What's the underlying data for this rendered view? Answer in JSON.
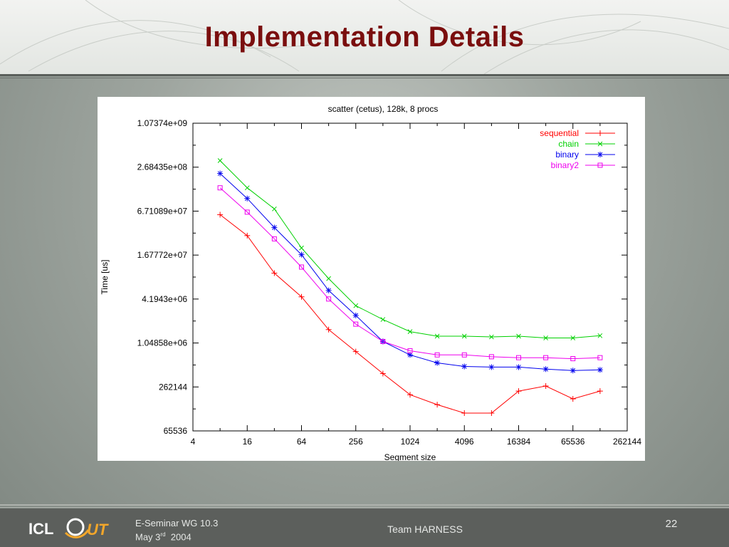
{
  "slide": {
    "title": "Implementation Details",
    "footer": {
      "seminar_line1": "E-Seminar WG 10.3",
      "seminar_month": "May 3",
      "seminar_sup": "rd",
      "seminar_year": "2004",
      "team": "Team HARNESS",
      "page_number": "22",
      "logo_text_left": "ICL",
      "logo_text_right": "UT"
    },
    "colors": {
      "title": "#7a0e0e",
      "sequential": "#ff0000",
      "chain": "#00d000",
      "binary": "#0000ee",
      "binary2": "#ee00ee"
    }
  },
  "chart_data": {
    "type": "line",
    "title": "scatter (cetus), 128k, 8 procs",
    "xlabel": "Segment size",
    "ylabel": "Time [us]",
    "xscale": "log2",
    "yscale": "log2",
    "xlim": [
      4,
      262144
    ],
    "ylim": [
      65536,
      1073741824
    ],
    "xticks": [
      4,
      16,
      64,
      256,
      1024,
      4096,
      16384,
      65536,
      262144
    ],
    "xtick_labels": [
      "4",
      "16",
      "64",
      "256",
      "1024",
      "4096",
      "16384",
      "65536",
      "262144"
    ],
    "yticks": [
      65536,
      262144,
      1048576,
      4194304,
      16777216,
      67108864,
      268435456,
      1073741824
    ],
    "ytick_labels": [
      "65536",
      "262144",
      "1.04858e+06",
      "4.1943e+06",
      "1.67772e+07",
      "6.71089e+07",
      "2.68435e+08",
      "1.07374e+09"
    ],
    "legend_position": "top-right",
    "grid": false,
    "x": [
      8,
      16,
      32,
      64,
      128,
      256,
      512,
      1024,
      2048,
      4096,
      8192,
      16384,
      32768,
      65536,
      131072
    ],
    "series": [
      {
        "name": "sequential",
        "marker": "plus",
        "values": [
          60000000,
          31000000,
          9500000,
          4500000,
          1600000,
          800000,
          400000,
          205000,
          150000,
          115000,
          115000,
          230000,
          270000,
          180000,
          230000
        ]
      },
      {
        "name": "chain",
        "marker": "cross",
        "values": [
          330000000,
          140000000,
          72000000,
          21000000,
          8000000,
          3400000,
          2200000,
          1500000,
          1300000,
          1300000,
          1270000,
          1300000,
          1230000,
          1230000,
          1320000
        ]
      },
      {
        "name": "binary",
        "marker": "star",
        "values": [
          220000000,
          100000000,
          40000000,
          17000000,
          5500000,
          2500000,
          1100000,
          720000,
          560000,
          500000,
          490000,
          490000,
          460000,
          440000,
          450000
        ]
      },
      {
        "name": "binary2",
        "marker": "square",
        "values": [
          140000000,
          65000000,
          28000000,
          11500000,
          4200000,
          1900000,
          1100000,
          820000,
          720000,
          720000,
          680000,
          660000,
          660000,
          640000,
          660000
        ]
      }
    ]
  }
}
